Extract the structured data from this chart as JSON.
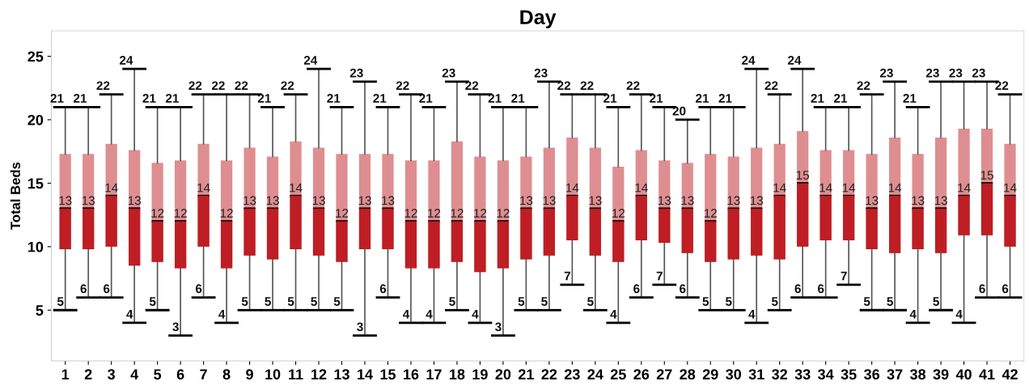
{
  "chart_data": {
    "type": "box",
    "title": "Day",
    "ylabel": "Total Beds",
    "categories": [
      "1",
      "2",
      "3",
      "4",
      "5",
      "6",
      "7",
      "8",
      "9",
      "10",
      "11",
      "12",
      "13",
      "14",
      "15",
      "16",
      "17",
      "18",
      "19",
      "20",
      "21",
      "22",
      "23",
      "24",
      "25",
      "26",
      "27",
      "28",
      "29",
      "30",
      "31",
      "32",
      "33",
      "34",
      "35",
      "36",
      "37",
      "38",
      "39",
      "40",
      "41",
      "42"
    ],
    "color": "#be1e24",
    "ylim": [
      1,
      27
    ],
    "yticks": [
      5,
      10,
      15,
      20,
      25
    ],
    "grid": false,
    "data_labels": true,
    "boxes": [
      {
        "low": 5,
        "q1": 9.8,
        "median": 13,
        "q3": 17.3,
        "high": 21
      },
      {
        "low": 6,
        "q1": 9.8,
        "median": 13,
        "q3": 17.3,
        "high": 21
      },
      {
        "low": 6,
        "q1": 10.0,
        "median": 14,
        "q3": 18.1,
        "high": 22
      },
      {
        "low": 4,
        "q1": 8.5,
        "median": 13,
        "q3": 17.6,
        "high": 24
      },
      {
        "low": 5,
        "q1": 8.8,
        "median": 12,
        "q3": 16.6,
        "high": 21
      },
      {
        "low": 3,
        "q1": 8.3,
        "median": 12,
        "q3": 16.8,
        "high": 21
      },
      {
        "low": 6,
        "q1": 10.0,
        "median": 14,
        "q3": 18.1,
        "high": 22
      },
      {
        "low": 4,
        "q1": 8.3,
        "median": 12,
        "q3": 16.8,
        "high": 22
      },
      {
        "low": 5,
        "q1": 9.3,
        "median": 13,
        "q3": 17.8,
        "high": 22
      },
      {
        "low": 5,
        "q1": 9.0,
        "median": 13,
        "q3": 17.1,
        "high": 21
      },
      {
        "low": 5,
        "q1": 9.8,
        "median": 14,
        "q3": 18.3,
        "high": 22
      },
      {
        "low": 5,
        "q1": 9.3,
        "median": 13,
        "q3": 17.8,
        "high": 24
      },
      {
        "low": 5,
        "q1": 8.8,
        "median": 12,
        "q3": 17.3,
        "high": 21
      },
      {
        "low": 3,
        "q1": 9.8,
        "median": 13,
        "q3": 17.3,
        "high": 23
      },
      {
        "low": 6,
        "q1": 9.8,
        "median": 13,
        "q3": 17.3,
        "high": 21
      },
      {
        "low": 4,
        "q1": 8.3,
        "median": 12,
        "q3": 16.8,
        "high": 22
      },
      {
        "low": 4,
        "q1": 8.3,
        "median": 12,
        "q3": 16.8,
        "high": 21
      },
      {
        "low": 5,
        "q1": 8.8,
        "median": 12,
        "q3": 18.3,
        "high": 23
      },
      {
        "low": 4,
        "q1": 8.0,
        "median": 12,
        "q3": 17.1,
        "high": 22
      },
      {
        "low": 3,
        "q1": 8.3,
        "median": 12,
        "q3": 16.8,
        "high": 21
      },
      {
        "low": 5,
        "q1": 9.0,
        "median": 13,
        "q3": 17.1,
        "high": 21
      },
      {
        "low": 5,
        "q1": 9.3,
        "median": 13,
        "q3": 17.8,
        "high": 23
      },
      {
        "low": 7,
        "q1": 10.5,
        "median": 14,
        "q3": 18.6,
        "high": 22
      },
      {
        "low": 5,
        "q1": 9.3,
        "median": 13,
        "q3": 17.8,
        "high": 22
      },
      {
        "low": 4,
        "q1": 8.8,
        "median": 12,
        "q3": 16.3,
        "high": 21
      },
      {
        "low": 6,
        "q1": 10.5,
        "median": 14,
        "q3": 17.6,
        "high": 22
      },
      {
        "low": 7,
        "q1": 10.3,
        "median": 13,
        "q3": 16.8,
        "high": 21
      },
      {
        "low": 6,
        "q1": 9.5,
        "median": 13,
        "q3": 16.6,
        "high": 20
      },
      {
        "low": 5,
        "q1": 8.8,
        "median": 12,
        "q3": 17.3,
        "high": 21
      },
      {
        "low": 5,
        "q1": 9.0,
        "median": 13,
        "q3": 17.1,
        "high": 21
      },
      {
        "low": 4,
        "q1": 9.3,
        "median": 13,
        "q3": 17.8,
        "high": 24
      },
      {
        "low": 5,
        "q1": 9.0,
        "median": 14,
        "q3": 18.1,
        "high": 22
      },
      {
        "low": 6,
        "q1": 10.0,
        "median": 15,
        "q3": 19.1,
        "high": 24
      },
      {
        "low": 6,
        "q1": 10.5,
        "median": 14,
        "q3": 17.6,
        "high": 21
      },
      {
        "low": 7,
        "q1": 10.5,
        "median": 14,
        "q3": 17.6,
        "high": 21
      },
      {
        "low": 5,
        "q1": 9.8,
        "median": 13,
        "q3": 17.3,
        "high": 22
      },
      {
        "low": 5,
        "q1": 9.5,
        "median": 14,
        "q3": 18.6,
        "high": 23
      },
      {
        "low": 4,
        "q1": 9.8,
        "median": 13,
        "q3": 17.3,
        "high": 21
      },
      {
        "low": 5,
        "q1": 9.5,
        "median": 13,
        "q3": 18.6,
        "high": 23
      },
      {
        "low": 4,
        "q1": 10.9,
        "median": 14,
        "q3": 19.3,
        "high": 23
      },
      {
        "low": 6,
        "q1": 10.9,
        "median": 15,
        "q3": 19.3,
        "high": 23
      },
      {
        "low": 6,
        "q1": 10.0,
        "median": 14,
        "q3": 18.1,
        "high": 22
      }
    ]
  }
}
